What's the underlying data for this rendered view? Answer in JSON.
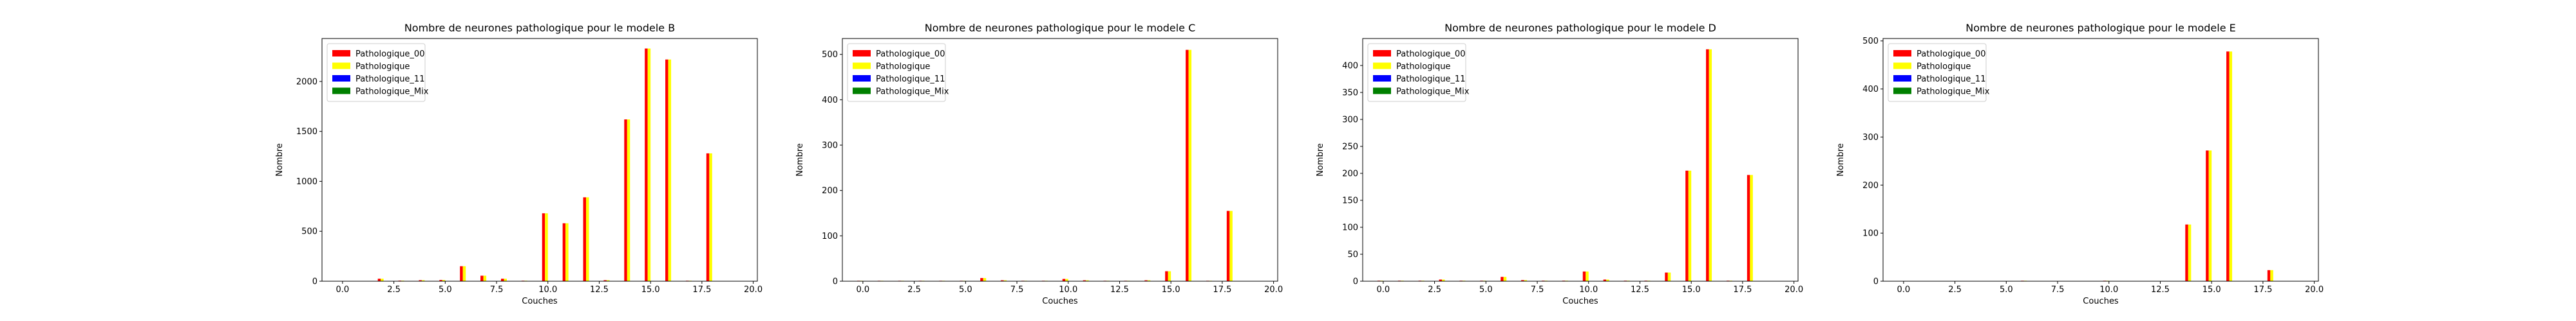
{
  "chart_data": [
    {
      "type": "bar",
      "title": "Nombre de neurones pathologique pour le modele B",
      "xlabel": "Couches",
      "ylabel": "Nombre",
      "xlim": [
        -1,
        20.2
      ],
      "ylim": [
        0,
        2430
      ],
      "xticks": [
        "0.0",
        "2.5",
        "5.0",
        "7.5",
        "10.0",
        "12.5",
        "15.0",
        "17.5",
        "20.0"
      ],
      "xtick_values": [
        0,
        2.5,
        5,
        7.5,
        10,
        12.5,
        15,
        17.5,
        20
      ],
      "yticks": [
        "0",
        "500",
        "1000",
        "1500",
        "2000"
      ],
      "ytick_values": [
        0,
        500,
        1000,
        1500,
        2000
      ],
      "grid": false,
      "legend_position": "upper-left",
      "x": [
        0,
        1,
        2,
        3,
        4,
        5,
        6,
        7,
        8,
        9,
        10,
        11,
        12,
        13,
        14,
        15,
        16,
        17,
        18
      ],
      "series": [
        {
          "name": "Pathologique_00",
          "color": "#ff0000",
          "values": [
            2,
            3,
            25,
            6,
            10,
            12,
            150,
            55,
            25,
            5,
            680,
            580,
            840,
            10,
            1620,
            2330,
            2220,
            5,
            1280
          ]
        },
        {
          "name": "Pathologique",
          "color": "#ffff00",
          "values": [
            2,
            3,
            25,
            6,
            10,
            12,
            150,
            55,
            25,
            5,
            680,
            580,
            840,
            10,
            1620,
            2330,
            2220,
            5,
            1280
          ]
        },
        {
          "name": "Pathologique_11",
          "color": "#0000ff",
          "values": [
            0,
            0,
            0,
            0,
            0,
            0,
            0,
            0,
            0,
            0,
            0,
            0,
            0,
            0,
            0,
            0,
            0,
            0,
            0
          ]
        },
        {
          "name": "Pathologique_Mix",
          "color": "#008000",
          "values": [
            0,
            0,
            0,
            0,
            0,
            0,
            0,
            0,
            0,
            0,
            0,
            0,
            0,
            0,
            0,
            0,
            0,
            0,
            0
          ]
        }
      ]
    },
    {
      "type": "bar",
      "title": "Nombre de neurones pathologique pour le modele C",
      "xlabel": "Couches",
      "ylabel": "Nombre",
      "xlim": [
        -1,
        20.2
      ],
      "ylim": [
        0,
        535
      ],
      "xticks": [
        "0.0",
        "2.5",
        "5.0",
        "7.5",
        "10.0",
        "12.5",
        "15.0",
        "17.5",
        "20.0"
      ],
      "xtick_values": [
        0,
        2.5,
        5,
        7.5,
        10,
        12.5,
        15,
        17.5,
        20
      ],
      "yticks": [
        "0",
        "100",
        "200",
        "300",
        "400",
        "500"
      ],
      "ytick_values": [
        0,
        100,
        200,
        300,
        400,
        500
      ],
      "grid": false,
      "legend_position": "upper-left",
      "x": [
        0,
        1,
        2,
        3,
        4,
        5,
        6,
        7,
        8,
        9,
        10,
        11,
        12,
        13,
        14,
        15,
        16,
        17,
        18
      ],
      "series": [
        {
          "name": "Pathologique_00",
          "color": "#ff0000",
          "values": [
            1,
            1,
            1,
            1,
            1,
            1,
            7,
            2,
            1,
            1,
            5,
            2,
            1,
            1,
            2,
            22,
            510,
            1,
            155
          ]
        },
        {
          "name": "Pathologique",
          "color": "#ffff00",
          "values": [
            1,
            1,
            1,
            1,
            1,
            1,
            7,
            2,
            1,
            1,
            5,
            2,
            1,
            1,
            2,
            22,
            510,
            1,
            155
          ]
        },
        {
          "name": "Pathologique_11",
          "color": "#0000ff",
          "values": [
            0,
            0,
            0,
            0,
            0,
            0,
            0,
            0,
            0,
            0,
            0,
            0,
            0,
            0,
            0,
            0,
            0,
            0,
            0
          ]
        },
        {
          "name": "Pathologique_Mix",
          "color": "#008000",
          "values": [
            0,
            0,
            0,
            0,
            0,
            0,
            0,
            0,
            0,
            0,
            0,
            0,
            0,
            0,
            0,
            0,
            0,
            0,
            0
          ]
        }
      ]
    },
    {
      "type": "bar",
      "title": "Nombre de neurones pathologique pour le modele D",
      "xlabel": "Couches",
      "ylabel": "Nombre",
      "xlim": [
        -1,
        20.2
      ],
      "ylim": [
        0,
        450
      ],
      "xticks": [
        "0.0",
        "2.5",
        "5.0",
        "7.5",
        "10.0",
        "12.5",
        "15.0",
        "17.5",
        "20.0"
      ],
      "xtick_values": [
        0,
        2.5,
        5,
        7.5,
        10,
        12.5,
        15,
        17.5,
        20
      ],
      "yticks": [
        "0",
        "50",
        "100",
        "150",
        "200",
        "250",
        "300",
        "350",
        "400"
      ],
      "ytick_values": [
        0,
        50,
        100,
        150,
        200,
        250,
        300,
        350,
        400
      ],
      "grid": false,
      "legend_position": "upper-left",
      "x": [
        0,
        1,
        2,
        3,
        4,
        5,
        6,
        7,
        8,
        9,
        10,
        11,
        12,
        13,
        14,
        15,
        16,
        17,
        18
      ],
      "series": [
        {
          "name": "Pathologique_00",
          "color": "#ff0000",
          "values": [
            1,
            1,
            1,
            3,
            1,
            1,
            8,
            2,
            1,
            1,
            18,
            3,
            1,
            1,
            16,
            205,
            430,
            1,
            197
          ]
        },
        {
          "name": "Pathologique",
          "color": "#ffff00",
          "values": [
            1,
            1,
            1,
            3,
            1,
            1,
            8,
            2,
            1,
            1,
            18,
            3,
            1,
            1,
            16,
            205,
            430,
            1,
            197
          ]
        },
        {
          "name": "Pathologique_11",
          "color": "#0000ff",
          "values": [
            0,
            0,
            0,
            0,
            0,
            0,
            0,
            0,
            0,
            0,
            0,
            0,
            0,
            0,
            0,
            0,
            0,
            0,
            0
          ]
        },
        {
          "name": "Pathologique_Mix",
          "color": "#008000",
          "values": [
            0,
            0,
            0,
            0,
            0,
            0,
            0,
            0,
            0,
            0,
            0,
            0,
            0,
            0,
            0,
            0,
            0,
            0,
            0
          ]
        }
      ]
    },
    {
      "type": "bar",
      "title": "Nombre de neurones pathologique pour le modele E",
      "xlabel": "Couches",
      "ylabel": "Nombre",
      "xlim": [
        -1,
        20.2
      ],
      "ylim": [
        0,
        505
      ],
      "xticks": [
        "0.0",
        "2.5",
        "5.0",
        "7.5",
        "10.0",
        "12.5",
        "15.0",
        "17.5",
        "20.0"
      ],
      "xtick_values": [
        0,
        2.5,
        5,
        7.5,
        10,
        12.5,
        15,
        17.5,
        20
      ],
      "yticks": [
        "0",
        "100",
        "200",
        "300",
        "400",
        "500"
      ],
      "ytick_values": [
        0,
        100,
        200,
        300,
        400,
        500
      ],
      "grid": false,
      "legend_position": "upper-left",
      "x": [
        0,
        1,
        2,
        3,
        4,
        5,
        6,
        7,
        8,
        9,
        10,
        11,
        12,
        13,
        14,
        15,
        16,
        17,
        18
      ],
      "series": [
        {
          "name": "Pathologique_00",
          "color": "#ff0000",
          "values": [
            0,
            0,
            0,
            0,
            0,
            0,
            1,
            0,
            0,
            0,
            1,
            0,
            0,
            0,
            118,
            272,
            478,
            0,
            23
          ]
        },
        {
          "name": "Pathologique",
          "color": "#ffff00",
          "values": [
            0,
            0,
            0,
            0,
            0,
            0,
            1,
            0,
            0,
            0,
            1,
            0,
            0,
            0,
            118,
            272,
            478,
            0,
            23
          ]
        },
        {
          "name": "Pathologique_11",
          "color": "#0000ff",
          "values": [
            0,
            0,
            0,
            0,
            0,
            0,
            0,
            0,
            0,
            0,
            0,
            0,
            0,
            0,
            0,
            0,
            0,
            0,
            0
          ]
        },
        {
          "name": "Pathologique_Mix",
          "color": "#008000",
          "values": [
            0,
            0,
            0,
            0,
            0,
            0,
            0,
            0,
            0,
            0,
            0,
            0,
            0,
            0,
            0,
            0,
            0,
            0,
            0
          ]
        }
      ]
    }
  ]
}
